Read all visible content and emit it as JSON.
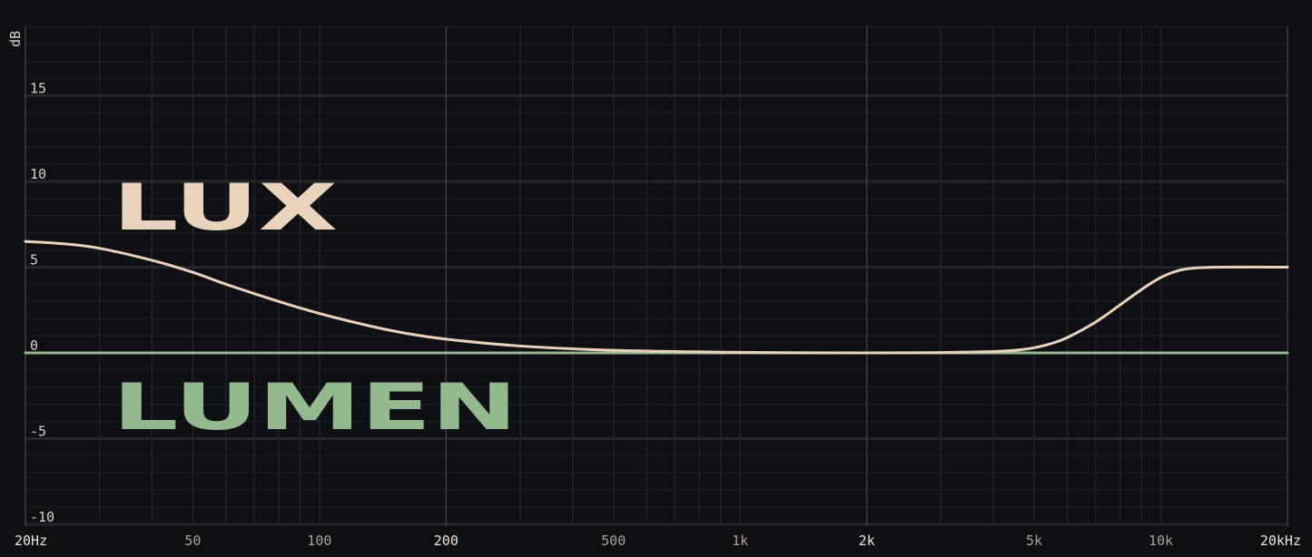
{
  "chart_data": {
    "type": "line",
    "ylabel": "dB",
    "x_scale": "log",
    "xlim": [
      20,
      20000
    ],
    "ylim": [
      -10.1,
      19.2
    ],
    "grid": true,
    "x_ticks": [
      {
        "value": 20,
        "label": "20Hz",
        "major": true
      },
      {
        "value": 50,
        "label": "50",
        "major": false
      },
      {
        "value": 100,
        "label": "100",
        "major": false
      },
      {
        "value": 200,
        "label": "200",
        "major": true
      },
      {
        "value": 500,
        "label": "500",
        "major": false
      },
      {
        "value": 1000,
        "label": "1k",
        "major": false
      },
      {
        "value": 2000,
        "label": "2k",
        "major": true
      },
      {
        "value": 5000,
        "label": "5k",
        "major": false
      },
      {
        "value": 10000,
        "label": "10k",
        "major": false
      },
      {
        "value": 20000,
        "label": "20kHz",
        "major": true
      }
    ],
    "y_ticks": [
      {
        "value": 15,
        "label": "15"
      },
      {
        "value": 10,
        "label": "10"
      },
      {
        "value": 5,
        "label": "5"
      },
      {
        "value": 0,
        "label": "0"
      },
      {
        "value": -5,
        "label": "-5"
      },
      {
        "value": -10,
        "label": "-10"
      }
    ],
    "series": [
      {
        "name": "LUX",
        "color": "#ead3bc",
        "x": [
          20,
          25,
          30,
          40,
          50,
          60,
          80,
          100,
          130,
          160,
          200,
          300,
          500,
          1000,
          2000,
          3000,
          4000,
          4500,
          5000,
          5500,
          6000,
          7000,
          8000,
          9000,
          10000,
          11000,
          12000,
          14000,
          20000
        ],
        "y": [
          6.5,
          6.35,
          6.1,
          5.4,
          4.7,
          4.0,
          3.0,
          2.3,
          1.6,
          1.15,
          0.8,
          0.4,
          0.15,
          0.03,
          0.0,
          0.02,
          0.08,
          0.15,
          0.3,
          0.55,
          0.9,
          1.8,
          2.8,
          3.7,
          4.4,
          4.8,
          4.95,
          5.0,
          5.0
        ]
      },
      {
        "name": "LUMEN",
        "color": "#95b98f",
        "x": [
          20,
          20000
        ],
        "y": [
          0,
          0
        ]
      }
    ]
  }
}
